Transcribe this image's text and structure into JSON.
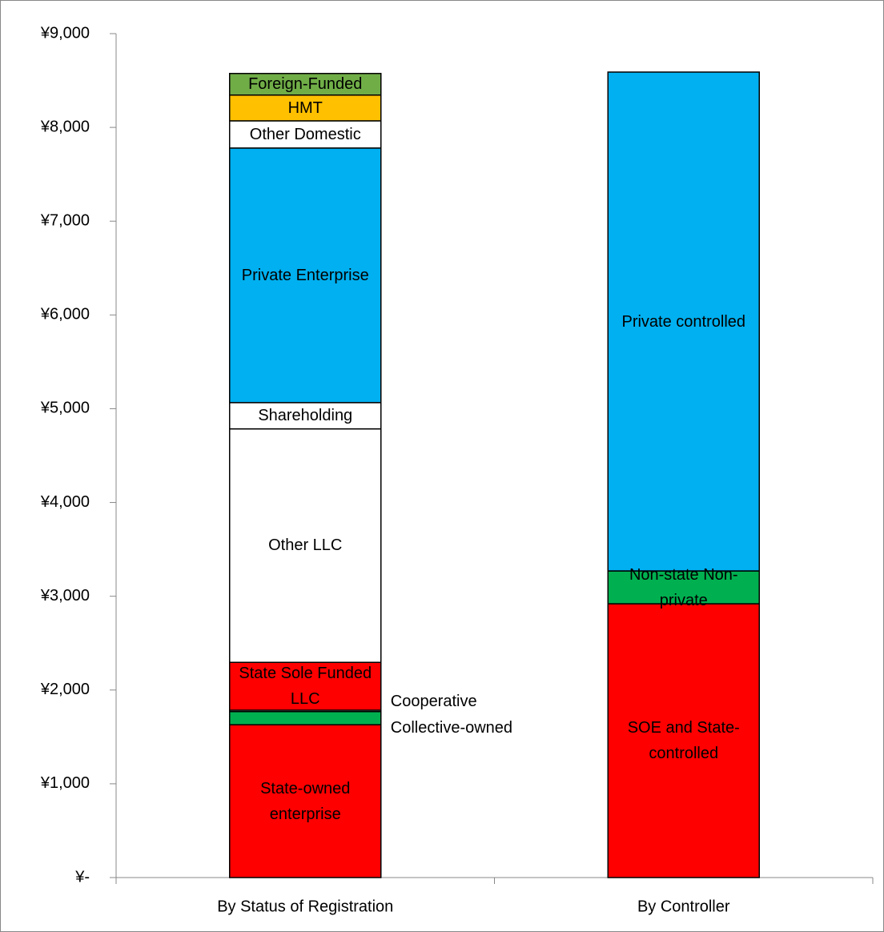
{
  "chart_data": {
    "type": "stacked_bar",
    "categories": [
      "By Status of Registration",
      "By Controller"
    ],
    "stacks": [
      [
        {
          "name": "State-owned enterprise",
          "color": "#ff0000",
          "value": 1630
        },
        {
          "name": "Collective-owned",
          "color": "#00b050",
          "value": 140
        },
        {
          "name": "Cooperative",
          "color": "#ffffff",
          "value": 15
        },
        {
          "name": "State Sole Funded LLC",
          "color": "#ff0000",
          "value": 510
        },
        {
          "name": "Other LLC",
          "color": "#ffffff",
          "value": 2490
        },
        {
          "name": "Shareholding",
          "color": "#ffffff",
          "value": 280
        },
        {
          "name": "Private Enterprise",
          "color": "#00b0f0",
          "value": 2715
        },
        {
          "name": "Other Domestic",
          "color": "#ffffff",
          "value": 290
        },
        {
          "name": "HMT",
          "color": "#ffc000",
          "value": 275
        },
        {
          "name": "Foreign-Funded",
          "color": "#70ad47",
          "value": 230
        }
      ],
      [
        {
          "name": "SOE and State-controlled",
          "color": "#ff0000",
          "value": 2920
        },
        {
          "name": "Non-state Non-private",
          "color": "#00b050",
          "value": 350
        },
        {
          "name": "Private controlled",
          "color": "#00b0f0",
          "value": 5320
        }
      ]
    ],
    "ylim": [
      0,
      9000
    ],
    "yticks": [
      {
        "value": 0,
        "label": "¥-"
      },
      {
        "value": 1000,
        "label": "¥1,000"
      },
      {
        "value": 2000,
        "label": "¥2,000"
      },
      {
        "value": 3000,
        "label": "¥3,000"
      },
      {
        "value": 4000,
        "label": "¥4,000"
      },
      {
        "value": 5000,
        "label": "¥5,000"
      },
      {
        "value": 6000,
        "label": "¥6,000"
      },
      {
        "value": 7000,
        "label": "¥7,000"
      },
      {
        "value": 8000,
        "label": "¥8,000"
      },
      {
        "value": 9000,
        "label": "¥9,000"
      }
    ],
    "grid": false
  }
}
